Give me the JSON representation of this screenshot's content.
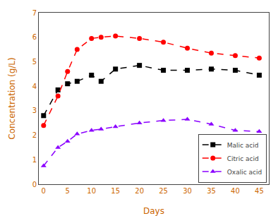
{
  "chart_data": {
    "type": "line",
    "x": [
      0,
      3,
      5,
      7,
      10,
      12,
      15,
      20,
      25,
      30,
      35,
      40,
      45
    ],
    "series": [
      {
        "name": "Malic acid",
        "color": "#000000",
        "marker": "square",
        "line_style": "dashed",
        "values": [
          2.8,
          3.85,
          4.1,
          4.2,
          4.45,
          4.2,
          4.7,
          4.85,
          4.65,
          4.65,
          4.7,
          4.65,
          4.45
        ]
      },
      {
        "name": "Citric acid",
        "color": "#ff0000",
        "marker": "circle",
        "line_style": "dashed",
        "values": [
          2.4,
          3.6,
          4.6,
          5.5,
          5.95,
          6.0,
          6.05,
          5.95,
          5.8,
          5.55,
          5.35,
          5.25,
          5.15
        ]
      },
      {
        "name": "Oxalic acid",
        "color": "#8b00ff",
        "marker": "triangle",
        "line_style": "dashed",
        "values": [
          0.75,
          1.5,
          1.75,
          2.05,
          2.2,
          2.25,
          2.35,
          2.5,
          2.6,
          2.65,
          2.45,
          2.2,
          2.15
        ]
      }
    ],
    "xlabel": "Days",
    "ylabel": "Concentration (g/L)",
    "xlim": [
      -1,
      47
    ],
    "ylim": [
      0,
      7
    ],
    "xticks": [
      0,
      5,
      10,
      15,
      20,
      25,
      30,
      35,
      40,
      45
    ],
    "yticks": [
      0,
      1,
      2,
      3,
      4,
      5,
      6,
      7
    ],
    "grid": false,
    "legend": "lower right"
  }
}
